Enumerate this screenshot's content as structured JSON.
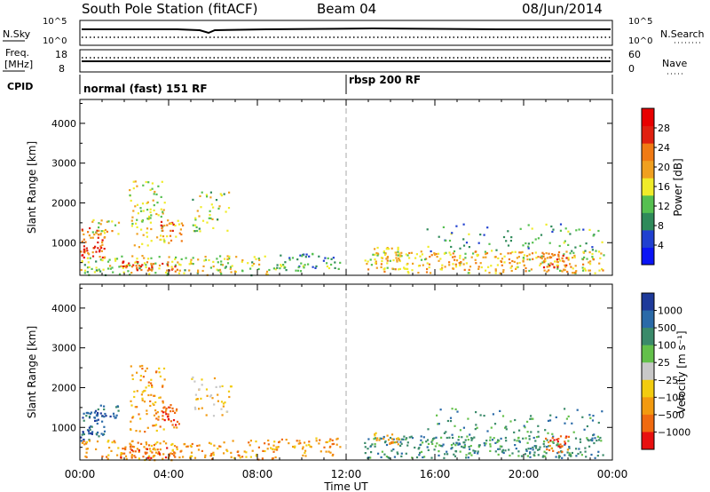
{
  "header": {
    "station": "South Pole Station (fitACF)",
    "beam": "Beam 04",
    "date": "08/Jun/2014"
  },
  "panels": {
    "nsky_label": "N.Sky",
    "nsky_ticks": [
      "10^5",
      "10^0"
    ],
    "nsearch_label": "N.Search",
    "nsearch_ticks": [
      "10^5",
      "10^0"
    ],
    "freq_label_line1": "Freq.",
    "freq_label_line2": "[MHz]",
    "freq_ticks": [
      "18",
      "8"
    ],
    "nave_label": "Nave",
    "nave_ticks": [
      "60",
      "0"
    ],
    "cpid_label": "CPID",
    "cpid_segments": [
      "normal (fast) 151 RF",
      "rbsp 200 RF"
    ]
  },
  "colors": {
    "power": [
      "#0a14f5",
      "#2040d0",
      "#2f8a5a",
      "#55c050",
      "#f0ec2a",
      "#f0a020",
      "#f07a14",
      "#e02010",
      "#e80000"
    ],
    "velocity": [
      "#1e3a9a",
      "#2a6aa8",
      "#3a8a6a",
      "#63c04a",
      "#c8c8c8",
      "#f2cc10",
      "#f29a10",
      "#f06a10",
      "#e81010"
    ]
  },
  "chart_data": [
    {
      "type": "heatmap",
      "name": "power",
      "xlabel": "",
      "ylabel": "Slant Range [km]",
      "x_ticks": [
        "00:00",
        "04:00",
        "08:00",
        "12:00",
        "16:00",
        "20:00",
        "00:00"
      ],
      "y_ticks": [
        "1000",
        "2000",
        "3000",
        "4000"
      ],
      "xlim": [
        0,
        24
      ],
      "ylim": [
        180,
        4600
      ],
      "colorbar_label": "Power [dB]",
      "colorbar_ticks": [
        "28",
        "24",
        "20",
        "16",
        "12",
        "8",
        "4"
      ],
      "colorbar_range": [
        0,
        32
      ]
    },
    {
      "type": "heatmap",
      "name": "velocity",
      "xlabel": "Time UT",
      "ylabel": "Slant Range [km]",
      "x_ticks": [
        "00:00",
        "04:00",
        "08:00",
        "12:00",
        "16:00",
        "20:00",
        "00:00"
      ],
      "y_ticks": [
        "1000",
        "2000",
        "3000",
        "4000"
      ],
      "xlim": [
        0,
        24
      ],
      "ylim": [
        180,
        4600
      ],
      "colorbar_label": "Velocity [m s⁻¹]",
      "colorbar_ticks": [
        "1000",
        "500",
        "100",
        "25",
        "−25",
        "−100",
        "−500",
        "−1000"
      ]
    }
  ]
}
